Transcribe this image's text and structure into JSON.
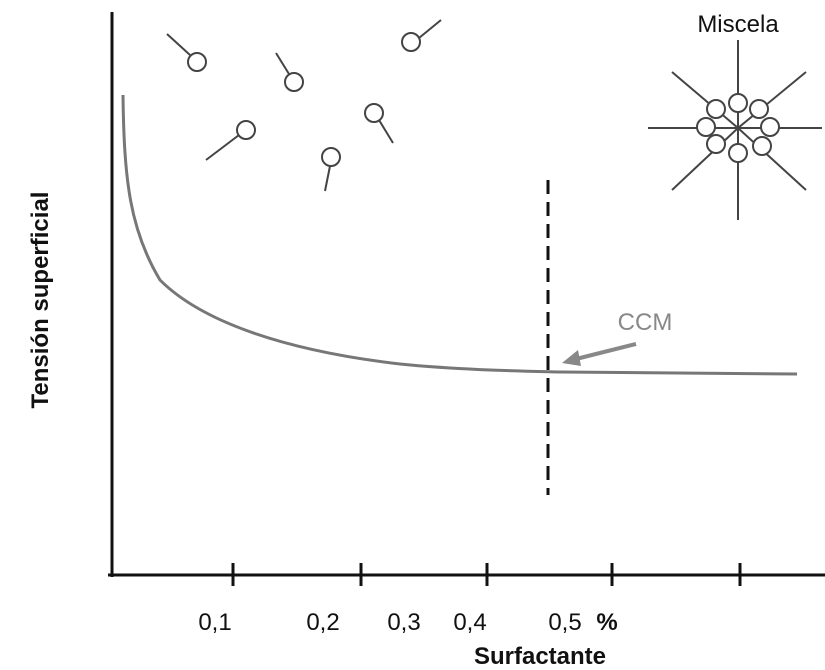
{
  "micelle_label": "Miscela",
  "y_axis_label": "Tensión superficial",
  "x_axis": {
    "tick_labels": [
      "0,1",
      "0,2",
      "0,3",
      "0,4",
      "0,5"
    ],
    "unit": "%",
    "label": "Surfactante"
  },
  "annotation": "CCM"
}
